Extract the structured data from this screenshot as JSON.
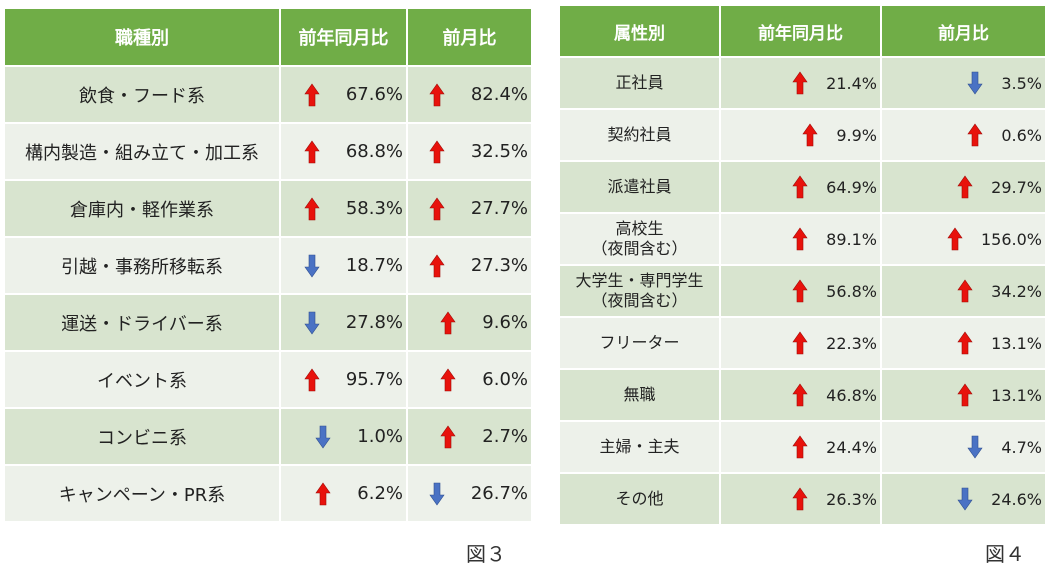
{
  "colors": {
    "header": "#70ad47",
    "row_dark": "#d8e4cf",
    "row_light": "#edf1ea",
    "up": "#e8120c",
    "down": "#4a72c4"
  },
  "table1": {
    "caption": "図３",
    "headers": [
      "職種別",
      "前年同月比",
      "前月比"
    ],
    "rows": [
      {
        "label": "飲食・フード系",
        "yoy": {
          "dir": "up",
          "icon": "up-arrow-icon",
          "value": "67.6%"
        },
        "mom": {
          "dir": "up",
          "icon": "up-arrow-icon",
          "value": "82.4%"
        }
      },
      {
        "label": "構内製造・組み立て・加工系",
        "yoy": {
          "dir": "up",
          "icon": "up-arrow-icon",
          "value": "68.8%"
        },
        "mom": {
          "dir": "up",
          "icon": "up-arrow-icon",
          "value": "32.5%"
        }
      },
      {
        "label": "倉庫内・軽作業系",
        "yoy": {
          "dir": "up",
          "icon": "up-arrow-icon",
          "value": "58.3%"
        },
        "mom": {
          "dir": "up",
          "icon": "up-arrow-icon",
          "value": "27.7%"
        }
      },
      {
        "label": "引越・事務所移転系",
        "yoy": {
          "dir": "down",
          "icon": "down-arrow-icon",
          "value": "18.7%"
        },
        "mom": {
          "dir": "up",
          "icon": "up-arrow-icon",
          "value": "27.3%"
        }
      },
      {
        "label": "運送・ドライバー系",
        "yoy": {
          "dir": "down",
          "icon": "down-arrow-icon",
          "value": "27.8%"
        },
        "mom": {
          "dir": "up",
          "icon": "up-arrow-icon",
          "value": "9.6%"
        }
      },
      {
        "label": "イベント系",
        "yoy": {
          "dir": "up",
          "icon": "up-arrow-icon",
          "value": "95.7%"
        },
        "mom": {
          "dir": "up",
          "icon": "up-arrow-icon",
          "value": "6.0%"
        }
      },
      {
        "label": "コンビニ系",
        "yoy": {
          "dir": "down",
          "icon": "down-arrow-icon",
          "value": "1.0%"
        },
        "mom": {
          "dir": "up",
          "icon": "up-arrow-icon",
          "value": "2.7%"
        }
      },
      {
        "label": "キャンペーン・PR系",
        "yoy": {
          "dir": "up",
          "icon": "up-arrow-icon",
          "value": "6.2%"
        },
        "mom": {
          "dir": "down",
          "icon": "down-arrow-icon",
          "value": "26.7%"
        }
      }
    ]
  },
  "table2": {
    "caption": "図４",
    "headers": [
      "属性別",
      "前年同月比",
      "前月比"
    ],
    "rows": [
      {
        "label": "正社員",
        "yoy": {
          "dir": "up",
          "icon": "up-arrow-icon",
          "value": "21.4%"
        },
        "mom": {
          "dir": "down",
          "icon": "down-arrow-icon",
          "value": "3.5%"
        }
      },
      {
        "label": "契約社員",
        "yoy": {
          "dir": "up",
          "icon": "up-arrow-icon",
          "value": "9.9%"
        },
        "mom": {
          "dir": "up",
          "icon": "up-arrow-icon",
          "value": "0.6%"
        }
      },
      {
        "label": "派遣社員",
        "yoy": {
          "dir": "up",
          "icon": "up-arrow-icon",
          "value": "64.9%"
        },
        "mom": {
          "dir": "up",
          "icon": "up-arrow-icon",
          "value": "29.7%"
        }
      },
      {
        "label": "高校生\n（夜間含む）",
        "yoy": {
          "dir": "up",
          "icon": "up-arrow-icon",
          "value": "89.1%"
        },
        "mom": {
          "dir": "up",
          "icon": "up-arrow-icon",
          "value": "156.0%"
        }
      },
      {
        "label": "大学生・専門学生\n（夜間含む）",
        "yoy": {
          "dir": "up",
          "icon": "up-arrow-icon",
          "value": "56.8%"
        },
        "mom": {
          "dir": "up",
          "icon": "up-arrow-icon",
          "value": "34.2%"
        }
      },
      {
        "label": "フリーター",
        "yoy": {
          "dir": "up",
          "icon": "up-arrow-icon",
          "value": "22.3%"
        },
        "mom": {
          "dir": "up",
          "icon": "up-arrow-icon",
          "value": "13.1%"
        }
      },
      {
        "label": "無職",
        "yoy": {
          "dir": "up",
          "icon": "up-arrow-icon",
          "value": "46.8%"
        },
        "mom": {
          "dir": "up",
          "icon": "up-arrow-icon",
          "value": "13.1%"
        }
      },
      {
        "label": "主婦・主夫",
        "yoy": {
          "dir": "up",
          "icon": "up-arrow-icon",
          "value": "24.4%"
        },
        "mom": {
          "dir": "down",
          "icon": "down-arrow-icon",
          "value": "4.7%"
        }
      },
      {
        "label": "その他",
        "yoy": {
          "dir": "up",
          "icon": "up-arrow-icon",
          "value": "26.3%"
        },
        "mom": {
          "dir": "down",
          "icon": "down-arrow-icon",
          "value": "24.6%"
        }
      }
    ]
  }
}
